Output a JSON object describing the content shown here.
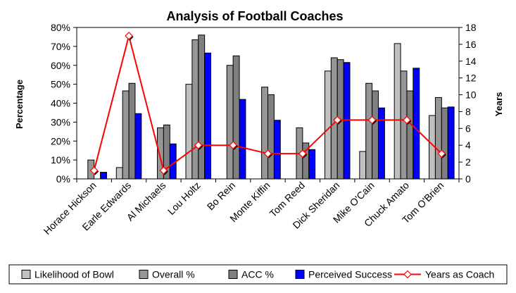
{
  "chart_data": {
    "type": "bar",
    "title": "Analysis of Football Coaches",
    "ylabel": "Percentage",
    "y2label": "Years",
    "ylim": [
      0,
      80
    ],
    "y_ticks": [
      "0%",
      "10%",
      "20%",
      "30%",
      "40%",
      "50%",
      "60%",
      "70%",
      "80%"
    ],
    "y2lim": [
      0,
      18
    ],
    "y2_ticks": [
      "0",
      "2",
      "4",
      "6",
      "8",
      "10",
      "12",
      "14",
      "16",
      "18"
    ],
    "grid": false,
    "legend": "bottom",
    "categories": [
      "Horace Hickson",
      "Earle Edwards",
      "Al Michaels",
      "Lou Holtz",
      "Bo Rein",
      "Monte Kiffin",
      "Tom Reed",
      "Dick Sheridan",
      "Mike O'Cain",
      "Chuck Amato",
      "Tom O'Brien"
    ],
    "series": [
      {
        "name": "Likelihood of Bowl",
        "type": "bar",
        "color": "#c0c0c0",
        "values": [
          0,
          6,
          0,
          50,
          0,
          0,
          0,
          57,
          14.5,
          71.5,
          33.5
        ]
      },
      {
        "name": "Overall %",
        "type": "bar",
        "color": "#969696",
        "values": [
          10,
          46.5,
          27,
          73.5,
          60,
          48.5,
          27,
          64,
          50.5,
          57,
          43
        ]
      },
      {
        "name": "ACC %",
        "type": "bar",
        "color": "#808080",
        "values": [
          0,
          50.5,
          28.5,
          76,
          65,
          44.5,
          19,
          63,
          46.5,
          46.5,
          37.5
        ]
      },
      {
        "name": "Perceived Success",
        "type": "bar",
        "color": "#0000ff",
        "values": [
          3.5,
          34.5,
          18.5,
          66.5,
          42,
          31,
          15.5,
          61.5,
          37.5,
          58.5,
          38
        ]
      },
      {
        "name": "Years as Coach",
        "type": "line",
        "axis": "right",
        "color": "#ff0000",
        "values": [
          1,
          17,
          1,
          4,
          4,
          3,
          3,
          7,
          7,
          7,
          3
        ]
      }
    ]
  }
}
